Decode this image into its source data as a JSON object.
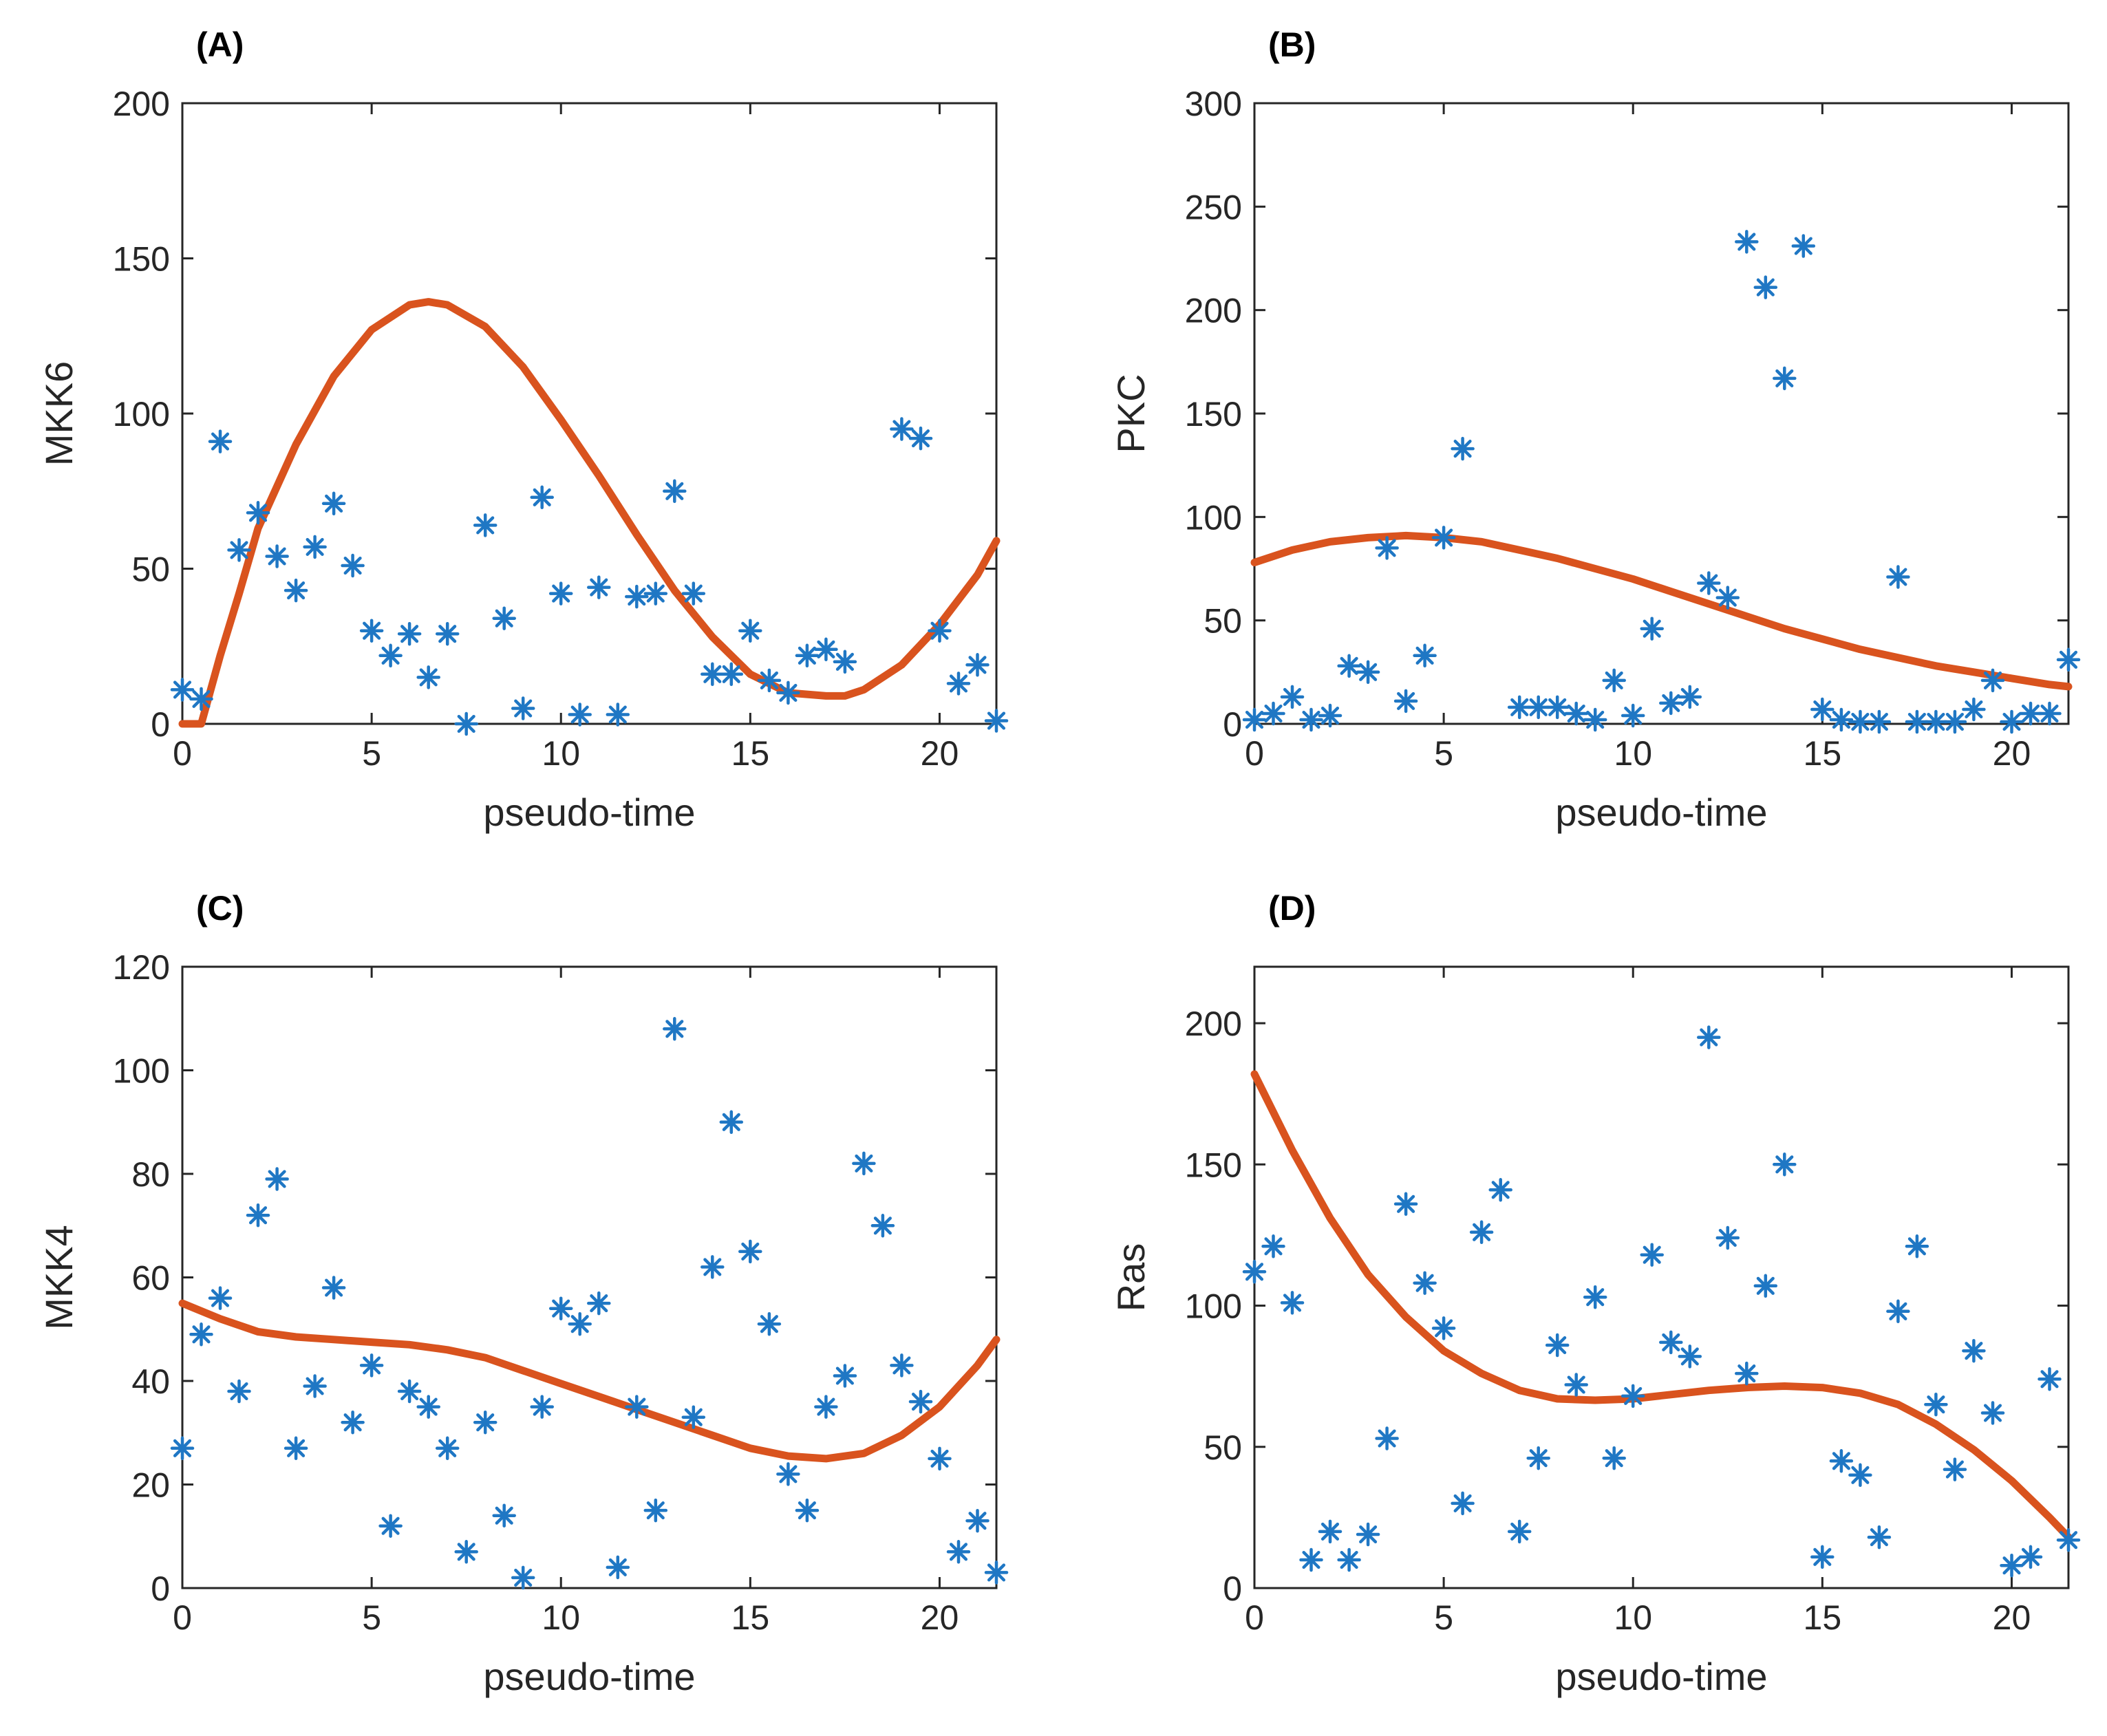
{
  "colors": {
    "marker": "#1f77c4",
    "curve": "#d9531e",
    "axis": "#262626"
  },
  "chart_data": [
    {
      "type": "scatter",
      "title": "(A)",
      "xlabel": "pseudo-time",
      "ylabel": "MKK6",
      "xlim": [
        0,
        21.5
      ],
      "ylim": [
        0,
        200
      ],
      "xticks": [
        0,
        5,
        10,
        15,
        20
      ],
      "yticks": [
        0,
        50,
        100,
        150,
        200
      ],
      "points": {
        "x": [
          0,
          0.5,
          1,
          1.5,
          2,
          2.5,
          3,
          3.5,
          4,
          4.5,
          5,
          5.5,
          6,
          6.5,
          7,
          7.5,
          8,
          8.5,
          9,
          9.5,
          10,
          10.5,
          11,
          11.5,
          12,
          12.5,
          13,
          13.5,
          14,
          14.5,
          15,
          15.5,
          16,
          16.5,
          17,
          17.5,
          19,
          19.5,
          20,
          20.5,
          21,
          21.5
        ],
        "y": [
          11,
          8,
          91,
          56,
          68,
          54,
          43,
          57,
          71,
          51,
          30,
          22,
          29,
          15,
          29,
          0,
          64,
          34,
          5,
          73,
          42,
          3,
          44,
          3,
          41,
          42,
          75,
          42,
          16,
          16,
          30,
          14,
          10,
          22,
          24,
          20,
          95,
          92,
          30,
          13,
          19,
          1
        ]
      },
      "fit": {
        "x": [
          0,
          0.5,
          1,
          1.5,
          2,
          3,
          4,
          5,
          6,
          6.5,
          7,
          8,
          9,
          10,
          11,
          12,
          13,
          14,
          15,
          16,
          17,
          17.5,
          18,
          19,
          20,
          21,
          21.5
        ],
        "y": [
          0,
          0,
          22,
          42,
          63,
          90,
          112,
          127,
          135,
          136,
          135,
          128,
          115,
          98,
          80,
          61,
          43,
          28,
          16,
          10,
          9,
          9,
          11,
          19,
          32,
          48,
          59
        ]
      }
    },
    {
      "type": "scatter",
      "title": "(B)",
      "xlabel": "pseudo-time",
      "ylabel": "PKC",
      "xlim": [
        0,
        21.5
      ],
      "ylim": [
        0,
        300
      ],
      "xticks": [
        0,
        5,
        10,
        15,
        20
      ],
      "yticks": [
        0,
        50,
        100,
        150,
        200,
        250,
        300
      ],
      "points": {
        "x": [
          0,
          0.5,
          1,
          1.5,
          2,
          2.5,
          3,
          3.5,
          4,
          4.5,
          5,
          5.5,
          7,
          7.5,
          8,
          8.5,
          9,
          9.5,
          10,
          10.5,
          11,
          11.5,
          12,
          12.5,
          13,
          13.5,
          14,
          14.5,
          15,
          15.5,
          16,
          16.5,
          17,
          17.5,
          18,
          18.5,
          19,
          19.5,
          20,
          20.5,
          21,
          21.5
        ],
        "y": [
          2,
          5,
          13,
          2,
          4,
          28,
          25,
          85,
          11,
          33,
          90,
          133,
          8,
          8,
          8,
          5,
          2,
          21,
          4,
          46,
          10,
          13,
          68,
          61,
          233,
          211,
          167,
          231,
          7,
          2,
          1,
          1,
          71,
          1,
          1,
          1,
          7,
          21,
          1,
          5,
          5,
          31
        ]
      },
      "fit": {
        "x": [
          0,
          1,
          2,
          3,
          4,
          5,
          6,
          7,
          8,
          9,
          10,
          11,
          12,
          13,
          14,
          15,
          16,
          17,
          18,
          19,
          20,
          21,
          21.5
        ],
        "y": [
          78,
          84,
          88,
          90,
          91,
          90,
          88,
          84,
          80,
          75,
          70,
          64,
          58,
          52,
          46,
          41,
          36,
          32,
          28,
          25,
          22,
          19,
          18
        ]
      }
    },
    {
      "type": "scatter",
      "title": "(C)",
      "xlabel": "pseudo-time",
      "ylabel": "MKK4",
      "xlim": [
        0,
        21.5
      ],
      "ylim": [
        0,
        120
      ],
      "xticks": [
        0,
        5,
        10,
        15,
        20
      ],
      "yticks": [
        0,
        20,
        40,
        60,
        80,
        100,
        120
      ],
      "points": {
        "x": [
          0,
          0.5,
          1,
          1.5,
          2,
          2.5,
          3,
          3.5,
          4,
          4.5,
          5,
          5.5,
          6,
          6.5,
          7,
          7.5,
          8,
          8.5,
          9,
          9.5,
          10,
          10.5,
          11,
          11.5,
          12,
          12.5,
          13,
          13.5,
          14,
          14.5,
          15,
          15.5,
          16,
          16.5,
          17,
          17.5,
          18,
          18.5,
          19,
          19.5,
          20,
          20.5,
          21,
          21.5
        ],
        "y": [
          27,
          49,
          56,
          38,
          72,
          79,
          27,
          39,
          58,
          32,
          43,
          12,
          38,
          35,
          27,
          7,
          32,
          14,
          2,
          35,
          54,
          51,
          55,
          4,
          35,
          15,
          108,
          33,
          62,
          90,
          65,
          51,
          22,
          15,
          35,
          41,
          82,
          70,
          43,
          36,
          25,
          7,
          13,
          3
        ]
      },
      "fit": {
        "x": [
          0,
          1,
          2,
          3,
          4,
          5,
          6,
          7,
          8,
          9,
          10,
          11,
          12,
          13,
          14,
          15,
          16,
          17,
          18,
          19,
          20,
          21,
          21.5
        ],
        "y": [
          55,
          52,
          49.5,
          48.5,
          48,
          47.5,
          47,
          46,
          44.5,
          42,
          39.5,
          37,
          34.5,
          32,
          29.5,
          27,
          25.5,
          25,
          26,
          29.5,
          35,
          43,
          48
        ]
      }
    },
    {
      "type": "scatter",
      "title": "(D)",
      "xlabel": "pseudo-time",
      "ylabel": "Ras",
      "xlim": [
        0,
        21.5
      ],
      "ylim": [
        0,
        220
      ],
      "xticks": [
        0,
        5,
        10,
        15,
        20
      ],
      "yticks": [
        0,
        50,
        100,
        150,
        200
      ],
      "points": {
        "x": [
          0,
          0.5,
          1,
          1.5,
          2,
          2.5,
          3,
          3.5,
          4,
          4.5,
          5,
          5.5,
          6,
          6.5,
          7,
          7.5,
          8,
          8.5,
          9,
          9.5,
          10,
          10.5,
          11,
          11.5,
          12,
          12.5,
          13,
          13.5,
          14,
          15,
          15.5,
          16,
          16.5,
          17,
          17.5,
          18,
          18.5,
          19,
          19.5,
          20,
          20.5,
          21,
          21.5
        ],
        "y": [
          112,
          121,
          101,
          10,
          20,
          10,
          19,
          53,
          136,
          108,
          92,
          30,
          126,
          141,
          20,
          46,
          86,
          72,
          103,
          46,
          68,
          118,
          87,
          82,
          195,
          124,
          76,
          107,
          150,
          11,
          45,
          40,
          18,
          98,
          121,
          65,
          42,
          84,
          62,
          8,
          11,
          74,
          17
        ]
      },
      "fit": {
        "x": [
          0,
          1,
          2,
          3,
          4,
          5,
          6,
          7,
          8,
          9,
          10,
          11,
          12,
          13,
          14,
          15,
          16,
          17,
          18,
          19,
          20,
          21,
          21.5
        ],
        "y": [
          182,
          155,
          131,
          111,
          96,
          84,
          76,
          70,
          67,
          66.5,
          67,
          68.5,
          70,
          71,
          71.5,
          71,
          69,
          65,
          58,
          49,
          38,
          25,
          18
        ]
      }
    }
  ]
}
